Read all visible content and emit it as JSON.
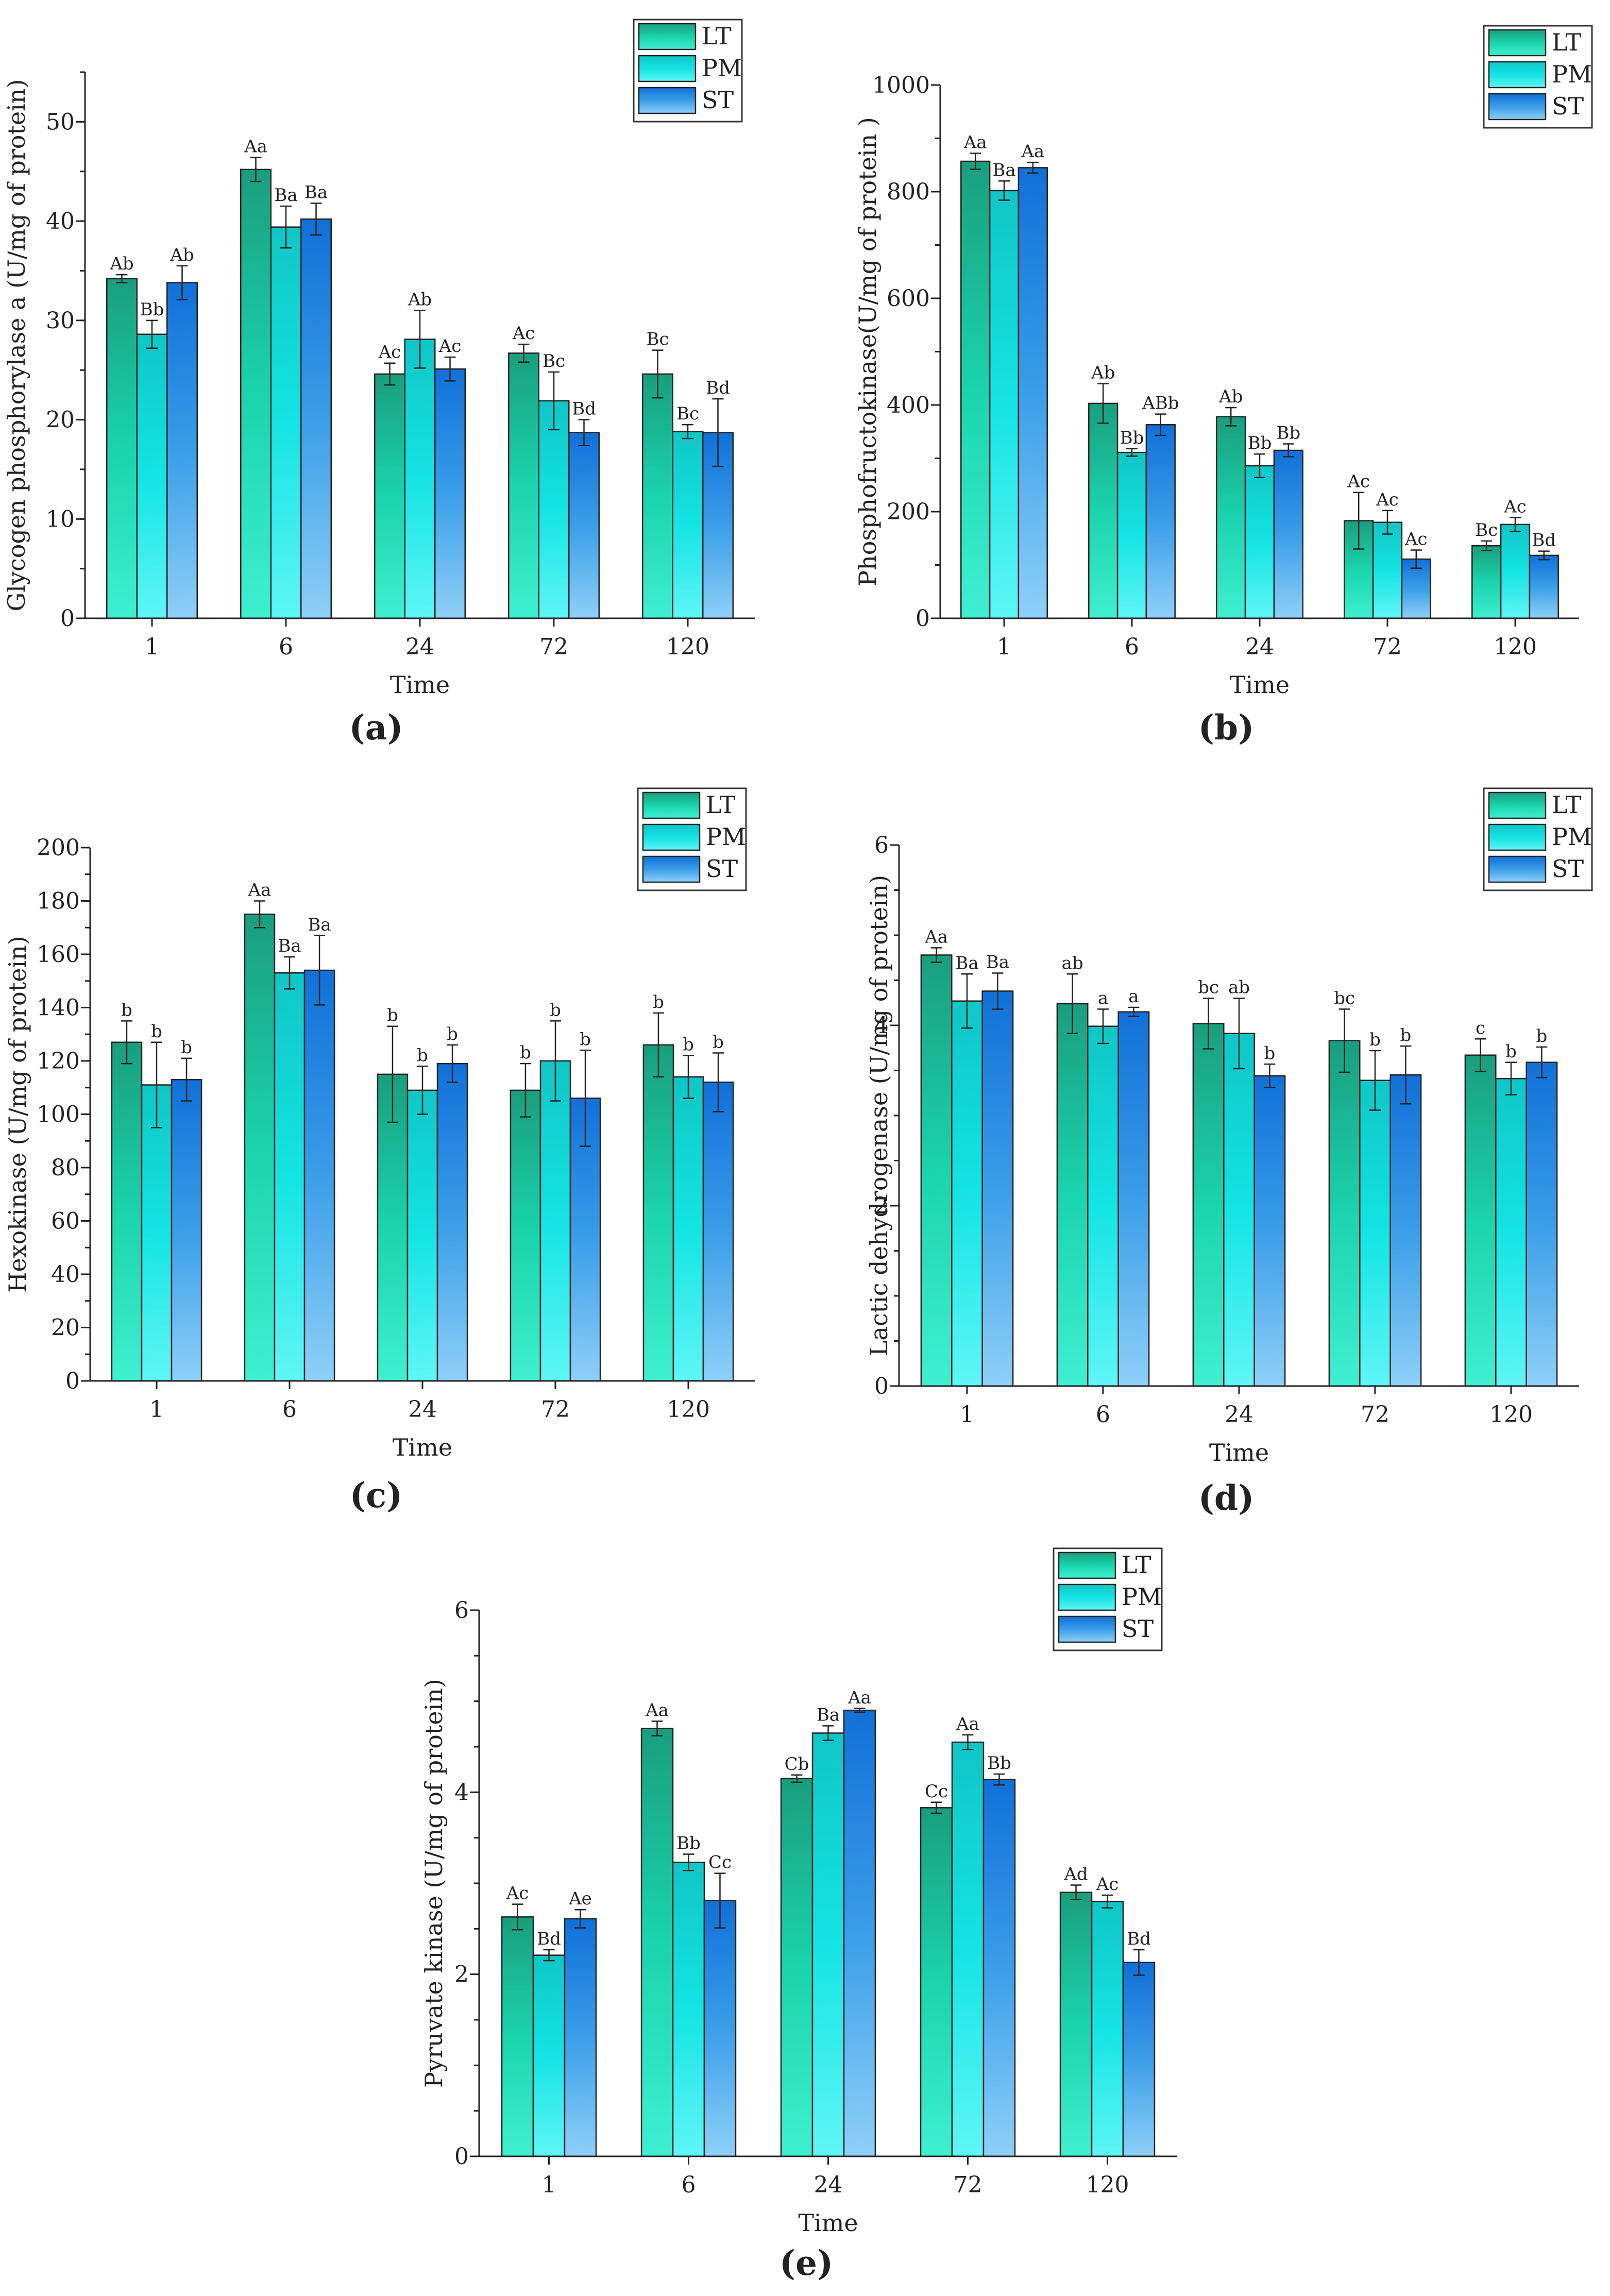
{
  "colors": {
    "LT": "green-gradient",
    "PM": "cyan-gradient",
    "ST": "blue-gradient"
  },
  "chart_data": [
    {
      "panel": "(a)",
      "type": "bar",
      "panel_letter": "a",
      "categories": [
        "1",
        "6",
        "24",
        "72",
        "120"
      ],
      "xlabel": "Time",
      "ylabel": "Glycogen phosphorylase a (U/mg of protein)",
      "ylim": [
        0,
        55
      ],
      "yticks": [
        0,
        10,
        20,
        30,
        40,
        50
      ],
      "minor_step": 5,
      "series": [
        {
          "name": "LT",
          "values": [
            34.2,
            45.2,
            24.6,
            26.7,
            24.6
          ],
          "errors": [
            0.4,
            1.2,
            1.1,
            0.9,
            2.4
          ],
          "labels": [
            "Ab",
            "Aa",
            "Ac",
            "Ac",
            "Bc"
          ]
        },
        {
          "name": "PM",
          "values": [
            28.6,
            39.4,
            28.1,
            21.9,
            18.8
          ],
          "errors": [
            1.4,
            2.1,
            2.9,
            2.9,
            0.7
          ],
          "labels": [
            "Bb",
            "Ba",
            "Ab",
            "Bc",
            "Bc"
          ]
        },
        {
          "name": "ST",
          "values": [
            33.8,
            40.2,
            25.1,
            18.7,
            18.7
          ],
          "errors": [
            1.7,
            1.6,
            1.2,
            1.3,
            3.4
          ],
          "labels": [
            "Ab",
            "Ba",
            "Ac",
            "Bd",
            "Bd"
          ]
        }
      ]
    },
    {
      "panel": "(b)",
      "type": "bar",
      "panel_letter": "b",
      "categories": [
        "1",
        "6",
        "24",
        "72",
        "120"
      ],
      "xlabel": "Time",
      "ylabel": "Phosphofructokinase(U/mg of protein )",
      "ylim": [
        0,
        1000
      ],
      "yticks": [
        0,
        200,
        400,
        600,
        800,
        1000
      ],
      "minor_step": 100,
      "series": [
        {
          "name": "LT",
          "values": [
            857,
            403,
            378,
            183,
            136
          ],
          "errors": [
            15,
            37,
            17,
            53,
            9
          ],
          "labels": [
            "Aa",
            "Ab",
            "Ab",
            "Ac",
            "Bc"
          ]
        },
        {
          "name": "PM",
          "values": [
            802,
            311,
            286,
            180,
            176
          ],
          "errors": [
            18,
            7,
            22,
            22,
            13
          ],
          "labels": [
            "Ba",
            "Bb",
            "Bb",
            "Ac",
            "Ac"
          ]
        },
        {
          "name": "ST",
          "values": [
            845,
            363,
            315,
            111,
            118
          ],
          "errors": [
            10,
            20,
            12,
            17,
            8
          ],
          "labels": [
            "Aa",
            "ABb",
            "Bb",
            "Ac",
            "Bd"
          ]
        }
      ]
    },
    {
      "panel": "(c)",
      "type": "bar",
      "panel_letter": "c",
      "categories": [
        "1",
        "6",
        "24",
        "72",
        "120"
      ],
      "xlabel": "Time",
      "ylabel": "Hexokinase (U/mg of protein)",
      "ylim": [
        0,
        200
      ],
      "yticks": [
        0,
        20,
        40,
        60,
        80,
        100,
        120,
        140,
        160,
        180,
        200
      ],
      "minor_step": 10,
      "series": [
        {
          "name": "LT",
          "values": [
            127,
            175,
            115,
            109,
            126
          ],
          "errors": [
            8,
            5,
            18,
            10,
            12
          ],
          "labels": [
            "b",
            "Aa",
            "b",
            "b",
            "b"
          ]
        },
        {
          "name": "PM",
          "values": [
            111,
            153,
            109,
            120,
            114
          ],
          "errors": [
            16,
            6,
            9,
            15,
            8
          ],
          "labels": [
            "b",
            "Ba",
            "b",
            "b",
            "b"
          ]
        },
        {
          "name": "ST",
          "values": [
            113,
            154,
            119,
            106,
            112
          ],
          "errors": [
            8,
            13,
            7,
            18,
            11
          ],
          "labels": [
            "b",
            "Ba",
            "b",
            "b",
            "b"
          ]
        }
      ]
    },
    {
      "panel": "(d)",
      "type": "bar",
      "panel_letter": "d",
      "categories": [
        "1",
        "6",
        "24",
        "72",
        "120"
      ],
      "xlabel": "Time",
      "ylabel": "Lactic dehydrogenase (U/mg of protein)",
      "ylim": [
        0,
        6
      ],
      "yticks": [
        0,
        2,
        4,
        6
      ],
      "minor_step": 0.5,
      "series": [
        {
          "name": "LT",
          "values": [
            4.78,
            4.24,
            4.02,
            3.83,
            3.67
          ],
          "errors": [
            0.08,
            0.33,
            0.28,
            0.35,
            0.18
          ],
          "labels": [
            "Aa",
            "ab",
            "bc",
            "bc",
            "c"
          ]
        },
        {
          "name": "PM",
          "values": [
            4.27,
            3.99,
            3.91,
            3.39,
            3.41
          ],
          "errors": [
            0.3,
            0.19,
            0.39,
            0.33,
            0.18
          ],
          "labels": [
            "Ba",
            "a",
            "ab",
            "b",
            "b"
          ]
        },
        {
          "name": "ST",
          "values": [
            4.38,
            4.15,
            3.44,
            3.45,
            3.59
          ],
          "errors": [
            0.2,
            0.05,
            0.13,
            0.32,
            0.17
          ],
          "labels": [
            "Ba",
            "a",
            "b",
            "b",
            "b"
          ]
        }
      ]
    },
    {
      "panel": "(e)",
      "type": "bar",
      "panel_letter": "e",
      "categories": [
        "1",
        "6",
        "24",
        "72",
        "120"
      ],
      "xlabel": "Time",
      "ylabel": "Pyruvate kinase (U/mg of protein)",
      "ylim": [
        0,
        6
      ],
      "yticks": [
        0,
        2,
        4,
        6
      ],
      "minor_step": 0.5,
      "series": [
        {
          "name": "LT",
          "values": [
            2.63,
            4.7,
            4.15,
            3.83,
            2.9
          ],
          "errors": [
            0.14,
            0.08,
            0.04,
            0.06,
            0.08
          ],
          "labels": [
            "Ac",
            "Aa",
            "Cb",
            "Cc",
            "Ad"
          ]
        },
        {
          "name": "PM",
          "values": [
            2.21,
            3.23,
            4.65,
            4.55,
            2.8
          ],
          "errors": [
            0.06,
            0.09,
            0.08,
            0.08,
            0.07
          ],
          "labels": [
            "Bd",
            "Bb",
            "Ba",
            "Aa",
            "Ac"
          ]
        },
        {
          "name": "ST",
          "values": [
            2.61,
            2.81,
            4.9,
            4.14,
            2.13
          ],
          "errors": [
            0.1,
            0.3,
            0.02,
            0.06,
            0.14
          ],
          "labels": [
            "Ae",
            "Cc",
            "Aa",
            "Bb",
            "Bd"
          ]
        }
      ]
    }
  ]
}
